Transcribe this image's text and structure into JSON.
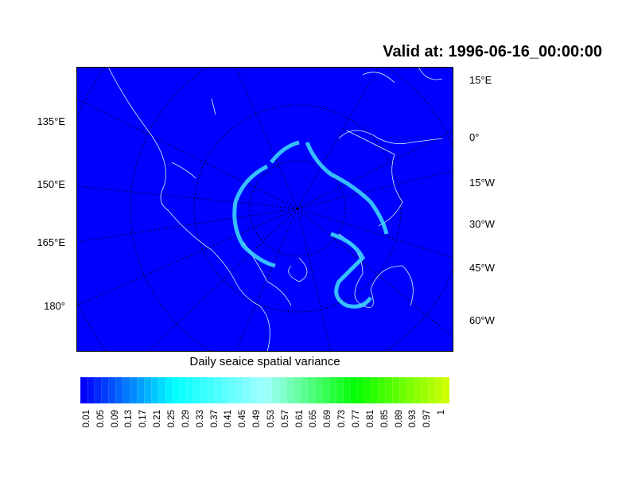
{
  "title": "Valid at: 1996-06-16_00:00:00",
  "left_labels": [
    "135°E",
    "150°E",
    "165°E",
    "180°"
  ],
  "right_labels": [
    "15°E",
    "0°",
    "15°W",
    "30°W",
    "45°W",
    "60°W"
  ],
  "colorbar": {
    "title": "Daily seaice spatial variance",
    "labels": [
      "0.01",
      "0.05",
      "0.09",
      "0.13",
      "0.17",
      "0.21",
      "0.25",
      "0.29",
      "0.33",
      "0.37",
      "0.41",
      "0.45",
      "0.49",
      "0.53",
      "0.57",
      "0.61",
      "0.65",
      "0.69",
      "0.73",
      "0.77",
      "0.81",
      "0.85",
      "0.89",
      "0.93",
      "0.97",
      "1"
    ],
    "colors": {
      "low": "#0000ff",
      "mid_cyan": "#00ffff",
      "light": "#a0ffff",
      "green": "#00ff00",
      "high": "#ccff00"
    }
  },
  "map": {
    "background": "#0000ff",
    "coastline": "#c8ffff",
    "ice_edge": "#40e0ff",
    "grid": "#000000"
  }
}
